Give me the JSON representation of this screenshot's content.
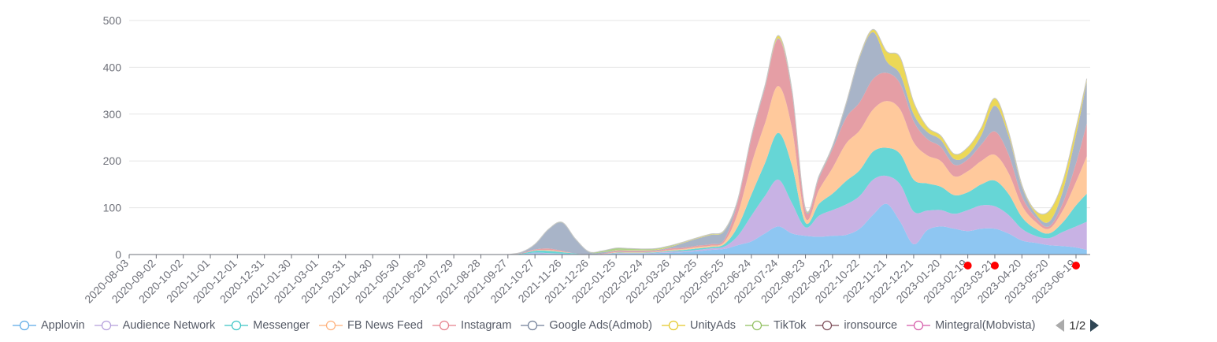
{
  "chart_data": {
    "type": "area",
    "stacked": true,
    "smooth": true,
    "y_axis": {
      "min": 0,
      "max": 500,
      "ticks": [
        "0",
        "100",
        "200",
        "300",
        "400",
        "500"
      ]
    },
    "grid": true,
    "x_tick_labels": [
      "2020-08-03",
      "2020-09-02",
      "2020-10-02",
      "2020-11-01",
      "2020-12-01",
      "2020-12-31",
      "2021-01-30",
      "2021-03-01",
      "2021-03-31",
      "2021-04-30",
      "2021-05-30",
      "2021-06-29",
      "2021-07-29",
      "2021-08-28",
      "2021-09-27",
      "2021-10-27",
      "2021-11-26",
      "2021-12-26",
      "2022-01-25",
      "2022-02-24",
      "2022-03-26",
      "2022-04-25",
      "2022-05-25",
      "2022-06-24",
      "2022-07-24",
      "2022-08-23",
      "2022-09-22",
      "2022-10-22",
      "2022-11-21",
      "2022-12-21",
      "2023-01-20",
      "2023-02-19",
      "2023-03-21",
      "2023-04-20",
      "2023-05-20",
      "2023-06-19"
    ],
    "x_samples": [
      "2021-09-27",
      "2021-10-12",
      "2021-10-27",
      "2021-11-11",
      "2021-11-26",
      "2021-12-11",
      "2021-12-26",
      "2022-01-10",
      "2022-01-25",
      "2022-02-09",
      "2022-02-24",
      "2022-03-11",
      "2022-03-26",
      "2022-04-10",
      "2022-04-25",
      "2022-05-10",
      "2022-05-25",
      "2022-06-09",
      "2022-06-24",
      "2022-07-09",
      "2022-07-24",
      "2022-08-08",
      "2022-08-23",
      "2022-09-07",
      "2022-09-22",
      "2022-10-07",
      "2022-10-22",
      "2022-11-06",
      "2022-11-21",
      "2022-12-06",
      "2022-12-21",
      "2023-01-05",
      "2023-01-20",
      "2023-02-04",
      "2023-02-19",
      "2023-03-06",
      "2023-03-21",
      "2023-04-05",
      "2023-04-20",
      "2023-05-05",
      "2023-05-20",
      "2023-06-04",
      "2023-06-19",
      "2023-07-01"
    ],
    "series": [
      {
        "name": "Applovin",
        "color": "#8ec6f2",
        "values": [
          0,
          1,
          3,
          2,
          2,
          1,
          0,
          1,
          2,
          2,
          2,
          3,
          4,
          5,
          7,
          10,
          12,
          20,
          28,
          45,
          60,
          45,
          40,
          38,
          40,
          42,
          55,
          85,
          108,
          70,
          22,
          52,
          60,
          55,
          50,
          55,
          55,
          45,
          30,
          25,
          20,
          18,
          15,
          10
        ]
      },
      {
        "name": "Audience Network",
        "color": "#c8b2e4",
        "values": [
          0,
          0,
          1,
          1,
          0,
          0,
          0,
          0,
          1,
          1,
          1,
          1,
          2,
          2,
          3,
          3,
          5,
          20,
          55,
          80,
          100,
          65,
          18,
          45,
          55,
          65,
          70,
          75,
          60,
          80,
          70,
          42,
          35,
          32,
          45,
          50,
          48,
          40,
          25,
          15,
          15,
          30,
          45,
          60
        ]
      },
      {
        "name": "Messenger",
        "color": "#66d6d6",
        "values": [
          0,
          1,
          4,
          5,
          3,
          1,
          0,
          0,
          1,
          1,
          1,
          1,
          2,
          3,
          3,
          3,
          5,
          20,
          45,
          70,
          100,
          80,
          10,
          25,
          35,
          50,
          55,
          60,
          60,
          65,
          68,
          58,
          50,
          40,
          38,
          45,
          55,
          45,
          25,
          15,
          10,
          20,
          45,
          60
        ]
      },
      {
        "name": "FB News Feed",
        "color": "#ffc99c",
        "values": [
          0,
          0,
          1,
          2,
          1,
          0,
          0,
          0,
          1,
          1,
          1,
          1,
          2,
          2,
          3,
          3,
          5,
          28,
          65,
          85,
          100,
          80,
          10,
          30,
          55,
          80,
          85,
          90,
          100,
          95,
          80,
          60,
          55,
          40,
          45,
          50,
          55,
          45,
          25,
          15,
          10,
          25,
          50,
          80
        ]
      },
      {
        "name": "Instagram",
        "color": "#e59ea5",
        "values": [
          0,
          1,
          2,
          3,
          2,
          0,
          0,
          1,
          2,
          2,
          2,
          2,
          3,
          3,
          3,
          3,
          5,
          25,
          55,
          75,
          100,
          75,
          15,
          25,
          40,
          55,
          60,
          65,
          60,
          55,
          45,
          35,
          30,
          25,
          25,
          35,
          50,
          40,
          20,
          10,
          5,
          15,
          40,
          70
        ]
      },
      {
        "name": "Google Ads(Admob)",
        "color": "#a8b4c8",
        "values": [
          0,
          2,
          10,
          40,
          60,
          30,
          5,
          3,
          2,
          2,
          2,
          2,
          3,
          10,
          15,
          20,
          18,
          3,
          3,
          3,
          2,
          4,
          3,
          3,
          5,
          28,
          95,
          100,
          25,
          20,
          15,
          15,
          15,
          12,
          10,
          20,
          55,
          40,
          20,
          8,
          10,
          25,
          60,
          90
        ]
      },
      {
        "name": "UnityAds",
        "color": "#ecd857",
        "values": [
          0,
          0,
          0,
          0,
          0,
          0,
          0,
          0,
          1,
          1,
          1,
          1,
          1,
          1,
          1,
          1,
          1,
          1,
          1,
          2,
          5,
          2,
          1,
          1,
          1,
          2,
          3,
          5,
          20,
          35,
          25,
          10,
          8,
          10,
          15,
          15,
          15,
          8,
          3,
          5,
          22,
          20,
          15,
          5
        ]
      },
      {
        "name": "TikTok",
        "color": "#a9d086",
        "values": [
          0,
          0,
          1,
          1,
          1,
          1,
          1,
          3,
          4,
          3,
          2,
          2,
          2,
          1,
          1,
          1,
          1,
          1,
          1,
          1,
          1,
          1,
          1,
          1,
          1,
          1,
          1,
          1,
          1,
          1,
          1,
          1,
          1,
          1,
          1,
          1,
          1,
          1,
          1,
          1,
          1,
          1,
          1,
          1
        ]
      },
      {
        "name": "ironsource",
        "color": "#8a6a70",
        "values": [
          0,
          0,
          0,
          0,
          0,
          0,
          0,
          0,
          0,
          0,
          0,
          0,
          0,
          0,
          0,
          0,
          0,
          0,
          0,
          0,
          0,
          0,
          0,
          0,
          0,
          0,
          0,
          0,
          0,
          0,
          0,
          0,
          0,
          0,
          0,
          0,
          0,
          0,
          0,
          0,
          0,
          0,
          0,
          0
        ]
      },
      {
        "name": "Mintegral(Mobvista)",
        "color": "#d974b5",
        "values": [
          0,
          0,
          0,
          0,
          0,
          0,
          0,
          0,
          0,
          0,
          0,
          0,
          0,
          0,
          0,
          0,
          0,
          0,
          0,
          0,
          0,
          0,
          0,
          0,
          0,
          0,
          0,
          0,
          0,
          0,
          0,
          0,
          0,
          0,
          0,
          0,
          0,
          0,
          0,
          0,
          0,
          0,
          0,
          0
        ]
      }
    ],
    "marker_dates": [
      "2023-02-19",
      "2023-03-21",
      "2023-06-19"
    ],
    "marker_color": "#ff0000"
  },
  "legend": {
    "items": [
      {
        "label": "Applovin",
        "color": "#5aa9e6"
      },
      {
        "label": "Audience Network",
        "color": "#b39ddb"
      },
      {
        "label": "Messenger",
        "color": "#3bc4c4"
      },
      {
        "label": "FB News Feed",
        "color": "#ffb07a"
      },
      {
        "label": "Instagram",
        "color": "#e57f8a"
      },
      {
        "label": "Google Ads(Admob)",
        "color": "#6f7d96"
      },
      {
        "label": "UnityAds",
        "color": "#e4c827"
      },
      {
        "label": "TikTok",
        "color": "#8fbf5e"
      },
      {
        "label": "ironsource",
        "color": "#7a4a55"
      },
      {
        "label": "Mintegral(Mobvista)",
        "color": "#d458a7"
      }
    ],
    "page": "1/2"
  }
}
